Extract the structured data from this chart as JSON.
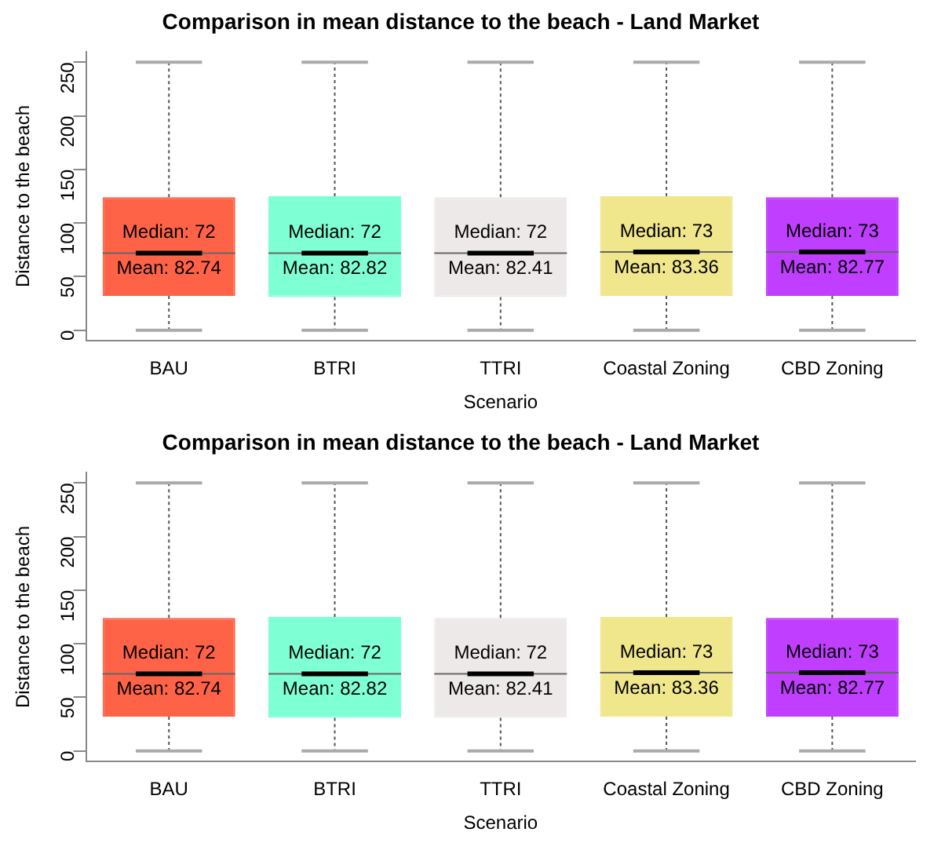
{
  "chart_data": [
    {
      "type": "box",
      "title": "Comparison in mean distance to the beach - Land Market",
      "xlabel": "Scenario",
      "ylabel": "Distance to the beach",
      "categories": [
        "BAU",
        "BTRI",
        "TTRI",
        "Coastal Zoning",
        "CBD Zoning"
      ],
      "colors": [
        "#ff6347",
        "#7fffd4",
        "#eee9e9",
        "#f0e68c",
        "#bf3eff"
      ],
      "boxes": [
        {
          "low": 0,
          "q1": 32,
          "median": 72,
          "q3": 124,
          "high": 250
        },
        {
          "low": 0,
          "q1": 31,
          "median": 72,
          "q3": 125,
          "high": 250
        },
        {
          "low": 0,
          "q1": 31,
          "median": 72,
          "q3": 124,
          "high": 250
        },
        {
          "low": 0,
          "q1": 32,
          "median": 73,
          "q3": 125,
          "high": 250
        },
        {
          "low": 0,
          "q1": 32,
          "median": 73,
          "q3": 124,
          "high": 250
        }
      ],
      "ylim": [
        -10,
        260
      ],
      "yticks": [
        0,
        50,
        100,
        150,
        200,
        250
      ],
      "annotations": [
        "Median: 72",
        "Mean: 82.74",
        "Median: 72",
        "Mean: 82.82",
        "Median: 72",
        "Mean: 82.41",
        "Median: 73",
        "Mean: 83.36",
        "Median: 73",
        "Mean: 82.77"
      ]
    },
    {
      "type": "box",
      "title": "Comparison in mean distance to the beach - Land Market",
      "xlabel": "Scenario",
      "ylabel": "Distance to the beach",
      "categories": [
        "BAU",
        "BTRI",
        "TTRI",
        "Coastal Zoning",
        "CBD Zoning"
      ],
      "colors": [
        "#ff6347",
        "#7fffd4",
        "#eee9e9",
        "#f0e68c",
        "#bf3eff"
      ],
      "boxes": [
        {
          "low": 0,
          "q1": 32,
          "median": 72,
          "q3": 124,
          "high": 250
        },
        {
          "low": 0,
          "q1": 31,
          "median": 72,
          "q3": 125,
          "high": 250
        },
        {
          "low": 0,
          "q1": 31,
          "median": 72,
          "q3": 124,
          "high": 250
        },
        {
          "low": 0,
          "q1": 32,
          "median": 73,
          "q3": 125,
          "high": 250
        },
        {
          "low": 0,
          "q1": 32,
          "median": 73,
          "q3": 124,
          "high": 250
        }
      ],
      "ylim": [
        -10,
        260
      ],
      "yticks": [
        0,
        50,
        100,
        150,
        200,
        250
      ],
      "annotations": [
        "Median: 72",
        "Mean: 82.74",
        "Median: 72",
        "Mean: 82.82",
        "Median: 72",
        "Mean: 82.41",
        "Median: 73",
        "Mean: 83.36",
        "Median: 73",
        "Mean: 82.77"
      ]
    }
  ]
}
